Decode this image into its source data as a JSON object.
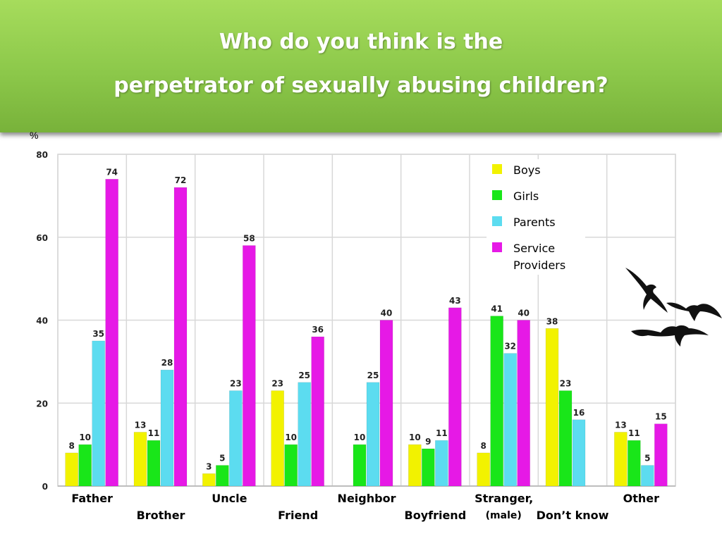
{
  "slide": {
    "title_line1": "Who do you think is the",
    "title_line2": "perpetrator of sexually abusing children?",
    "banner_color": "#8cc84a"
  },
  "chart_data": {
    "type": "bar",
    "ylabel": "%",
    "ylim": [
      0,
      80
    ],
    "yticks": [
      0,
      20,
      40,
      60,
      80
    ],
    "grid": true,
    "legend_position": "top-right",
    "categories": [
      "Father",
      "Brother",
      "Uncle",
      "Friend",
      "Neighbor",
      "Boyfriend",
      "Stranger, (male)",
      "Don’t know",
      "Other"
    ],
    "category_labels": [
      {
        "text": "Father",
        "row": 1
      },
      {
        "text": "Brother",
        "row": 2
      },
      {
        "text": "Uncle",
        "row": 1
      },
      {
        "text": "Friend",
        "row": 2
      },
      {
        "text": "Neighbor",
        "row": 1
      },
      {
        "text": "Boyfriend",
        "row": 2
      },
      {
        "text": "Stranger,",
        "row": 1,
        "sub": "(male)"
      },
      {
        "text": "Don’t know",
        "row": 2
      },
      {
        "text": "Other",
        "row": 1
      }
    ],
    "series": [
      {
        "name": "Boys",
        "color": "#f2f200",
        "values": [
          8,
          13,
          3,
          23,
          null,
          10,
          8,
          38,
          13
        ]
      },
      {
        "name": "Girls",
        "color": "#19e619",
        "values": [
          10,
          11,
          5,
          10,
          10,
          9,
          41,
          23,
          11
        ]
      },
      {
        "name": "Parents",
        "color": "#5cdcf0",
        "values": [
          35,
          28,
          23,
          25,
          25,
          11,
          32,
          16,
          5
        ]
      },
      {
        "name": "Service Providers",
        "color": "#e619e6",
        "values": [
          74,
          72,
          58,
          36,
          40,
          43,
          40,
          null,
          15
        ]
      }
    ]
  },
  "legend": {
    "items": [
      {
        "label": "Boys",
        "color": "#f2f200"
      },
      {
        "label": "Girls",
        "color": "#19e619"
      },
      {
        "label": "Parents",
        "color": "#5cdcf0"
      },
      {
        "label": "Service Providers",
        "color": "#e619e6"
      }
    ]
  },
  "decoration": {
    "icon": "flying-birds-icon"
  }
}
